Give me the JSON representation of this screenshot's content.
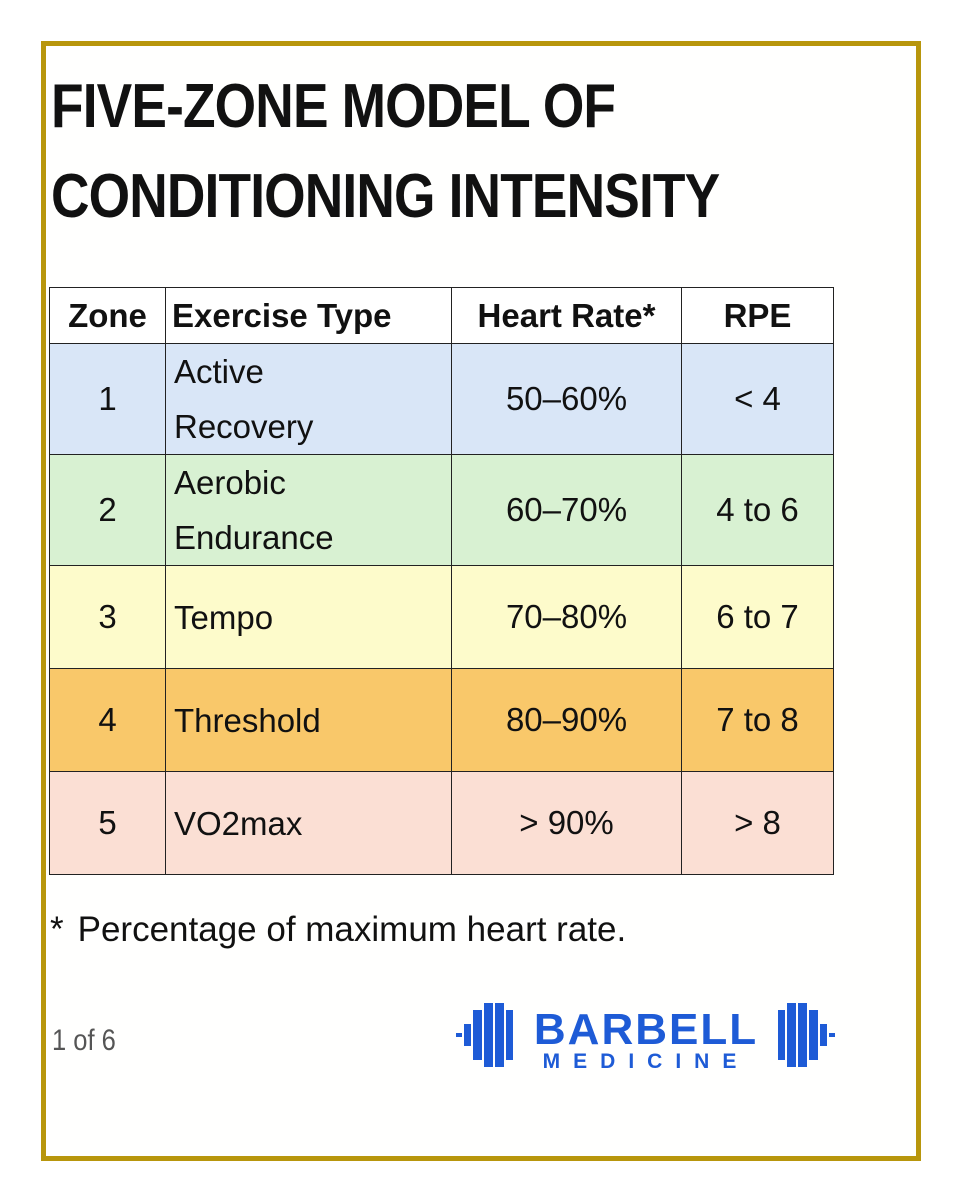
{
  "title": {
    "line1": "FIVE-ZONE MODEL OF",
    "line2": "CONDITIONING INTENSITY"
  },
  "table": {
    "headers": [
      "Zone",
      "Exercise Type",
      "Heart Rate*",
      "RPE"
    ],
    "rows": [
      {
        "zone": "1",
        "type_line1": "Active",
        "type_line2": "Recovery",
        "heart_rate": "50–60%",
        "rpe": "< 4",
        "color": "#d9e6f7"
      },
      {
        "zone": "2",
        "type_line1": "Aerobic",
        "type_line2": "Endurance",
        "heart_rate": "60–70%",
        "rpe": "4 to 6",
        "color": "#d8f1d2"
      },
      {
        "zone": "3",
        "type_line1": "Tempo",
        "heart_rate": "70–80%",
        "rpe": "6 to 7",
        "color": "#fdfbcb"
      },
      {
        "zone": "4",
        "type_line1": "Threshold",
        "heart_rate": "80–90%",
        "rpe": "7 to 8",
        "color": "#f9c86a"
      },
      {
        "zone": "5",
        "type_line1": "VO2max",
        "heart_rate": "> 90%",
        "rpe": "> 8",
        "color": "#fbdfd4"
      }
    ]
  },
  "footnote": {
    "marker": "*",
    "text": "Percentage of maximum heart rate."
  },
  "page_indicator": "1 of 6",
  "logo": {
    "line1": "BARBELL",
    "line2": "MEDICINE",
    "color": "#1e5bd6"
  },
  "border_color": "#b8960c"
}
